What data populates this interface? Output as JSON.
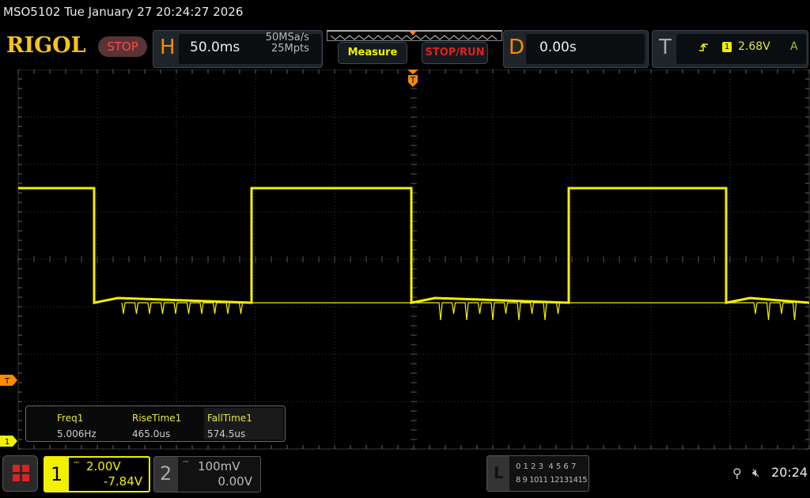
{
  "header": {
    "title": "MSO5102  Tue January 27 20:24:27 2026",
    "logo": "RIGOL",
    "run_state": "STOP"
  },
  "horizontal": {
    "label": "H",
    "timebase": "50.0ms",
    "sample_rate": "50MSa/s",
    "memory_depth": "25Mpts"
  },
  "buttons": {
    "measure": "Measure",
    "stop_run": "STOP/RUN"
  },
  "delay": {
    "label": "D",
    "value": "0.00s"
  },
  "trigger": {
    "label": "T",
    "slope_icon": "rising-edge-icon",
    "source": "1",
    "level": "2.68V",
    "mode": "A"
  },
  "markers": {
    "trigger_level": "T",
    "ch1_ground": "1",
    "trigger_position": "T"
  },
  "measurements": [
    {
      "name": "Freq1",
      "value": "5.006Hz"
    },
    {
      "name": "RiseTime1",
      "value": "465.0us"
    },
    {
      "name": "FallTime1",
      "value": "574.5us"
    }
  ],
  "channels": [
    {
      "id": "1",
      "scale": "2.00V",
      "offset": "-7.84V",
      "color": "#f0f000",
      "active": true
    },
    {
      "id": "2",
      "scale": "100mV",
      "offset": "0.00V",
      "color": "#888888",
      "active": false
    }
  ],
  "logic": {
    "label": "L",
    "row1": "0 1 2 3  4 5 6 7",
    "row2": "8 9 1011 12131415"
  },
  "status": {
    "usb_icon": "usb-icon",
    "sound_icon": "speaker-muted-icon",
    "time": "20:24"
  },
  "colors": {
    "ch1": "#f0f000",
    "orange": "#ff8a00",
    "red": "#ff3030"
  },
  "waveform": {
    "type": "square",
    "frequency_hz": 5.006
  }
}
